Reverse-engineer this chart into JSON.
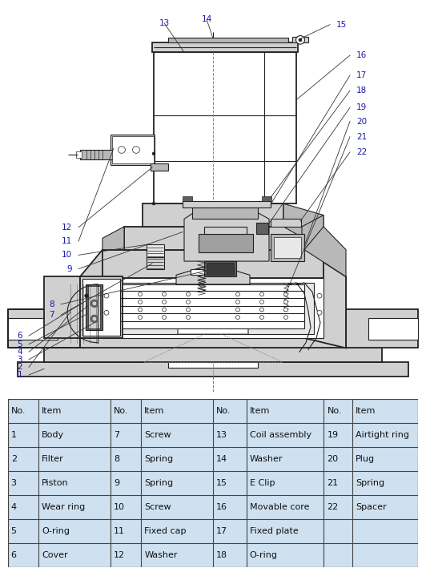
{
  "bg_color": "#ffffff",
  "table_bg": "#cfe0f0",
  "border_color": "#444444",
  "label_color": "#1a1aaa",
  "line_color": "#222222",
  "gray1": "#d0d0d0",
  "gray2": "#b8b8b8",
  "gray3": "#e8e8e8",
  "dark_fill": "#606060",
  "mid_gray": "#a0a0a0",
  "font_size_label": 7.5,
  "font_size_table": 8,
  "parts_col1": [
    [
      "1",
      "Body"
    ],
    [
      "2",
      "Filter"
    ],
    [
      "3",
      "Piston"
    ],
    [
      "4",
      "Wear ring"
    ],
    [
      "5",
      "O-ring"
    ],
    [
      "6",
      "Cover"
    ]
  ],
  "parts_col2": [
    [
      "7",
      "Screw"
    ],
    [
      "8",
      "Spring"
    ],
    [
      "9",
      "Spring"
    ],
    [
      "10",
      "Screw"
    ],
    [
      "11",
      "Fixed cap"
    ],
    [
      "12",
      "Washer"
    ]
  ],
  "parts_col3": [
    [
      "13",
      "Coil assembly"
    ],
    [
      "14",
      "Washer"
    ],
    [
      "15",
      "E Clip"
    ],
    [
      "16",
      "Movable core"
    ],
    [
      "17",
      "Fixed plate"
    ],
    [
      "18",
      "O-ring"
    ]
  ],
  "parts_col4": [
    [
      "19",
      "Airtight ring"
    ],
    [
      "20",
      "Plug"
    ],
    [
      "21",
      "Spring"
    ],
    [
      "22",
      "Spacer"
    ],
    [
      "",
      ""
    ],
    [
      "",
      ""
    ]
  ]
}
